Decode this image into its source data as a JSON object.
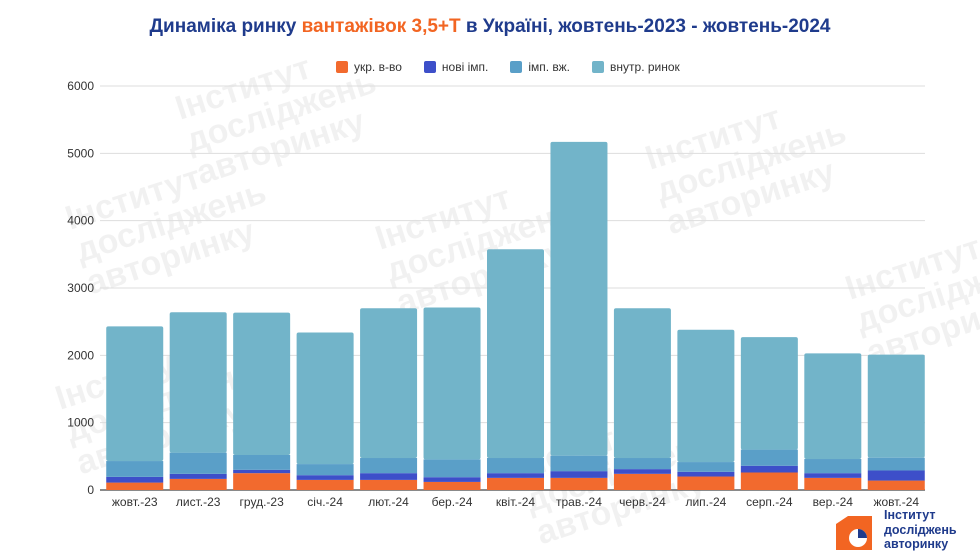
{
  "title": {
    "prefix": "Динаміка ринку ",
    "highlight": "вантажівок 3,5+Т",
    "suffix": " в Україні, жовтень-2023 - жовтень-2024"
  },
  "colors": {
    "ukr": "#f26a2e",
    "new_imp": "#3d4fc9",
    "imp_used": "#5a9fc8",
    "domestic": "#72b4c9",
    "title": "#1f3b8c",
    "highlight": "#f26522"
  },
  "logo": {
    "line1": "Інститут",
    "line2": "досліджень",
    "line3": "авторинку"
  },
  "watermark": {
    "line1": "Інститут",
    "line2": "досліджень",
    "line3": "авторинку"
  },
  "chart_data": {
    "type": "bar",
    "stacked": true,
    "categories": [
      "жовт.-23",
      "лист.-23",
      "груд.-23",
      "січ.-24",
      "лют.-24",
      "бер.-24",
      "квіт.-24",
      "трав.-24",
      "черв.-24",
      "лип.-24",
      "серп.-24",
      "вер.-24",
      "жовт.-24"
    ],
    "series": [
      {
        "name": "укр. в-во",
        "values": [
          110,
          165,
          250,
          150,
          150,
          120,
          180,
          180,
          240,
          200,
          260,
          180,
          140
        ]
      },
      {
        "name": "нові імп.",
        "values": [
          85,
          75,
          50,
          70,
          100,
          70,
          70,
          100,
          70,
          70,
          100,
          70,
          150
        ]
      },
      {
        "name": "імп. вж.",
        "values": [
          235,
          315,
          220,
          165,
          225,
          265,
          225,
          230,
          165,
          145,
          240,
          210,
          190
        ]
      },
      {
        "name": "внутр. ринок",
        "values": [
          2000,
          2085,
          2115,
          1955,
          2225,
          2255,
          3100,
          4660,
          2225,
          1965,
          1670,
          1570,
          1530
        ]
      }
    ],
    "ylim": [
      0,
      6000
    ],
    "yticks": [
      0,
      1000,
      2000,
      3000,
      4000,
      5000,
      6000
    ],
    "grid": true,
    "legend_position": "top"
  }
}
